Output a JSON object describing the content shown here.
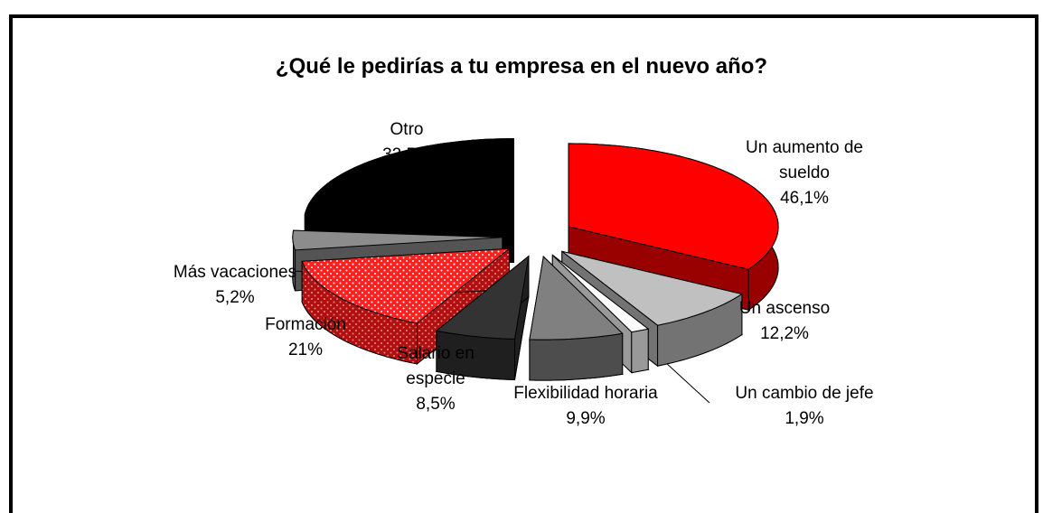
{
  "chart_data": {
    "type": "pie",
    "title": "¿Qué le pedirías a tu empresa en el nuevo año?",
    "categories": [
      "Un aumento de sueldo",
      "Un ascenso",
      "Un cambio de jefe",
      "Flexibilidad horaria",
      "Salario en especie",
      "Formación",
      "Más vacaciones",
      "Otro"
    ],
    "values": [
      46.1,
      12.2,
      1.9,
      9.9,
      8.5,
      21,
      5.2,
      32.5
    ],
    "value_labels": [
      "46,1%",
      "12,2%",
      "1,9%",
      "9,9%",
      "8,5%",
      "21%",
      "5,2%",
      "32,5%"
    ],
    "colors": [
      "#ff0000",
      "#c0c0c0",
      "#ffffff",
      "#808080",
      "#333333",
      "#ff2020",
      "#8c8c8c",
      "#000000"
    ]
  }
}
